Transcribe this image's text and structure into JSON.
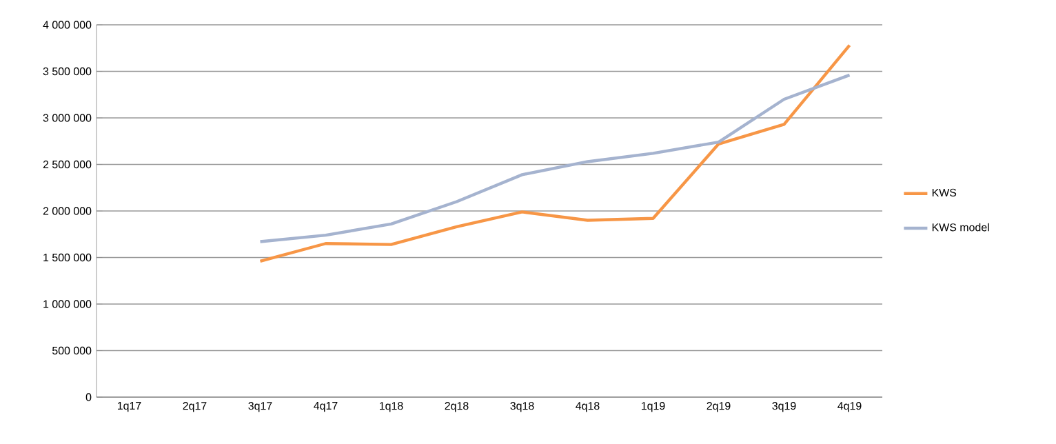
{
  "chart_data": {
    "type": "line",
    "categories": [
      "1q17",
      "2q17",
      "3q17",
      "4q17",
      "1q18",
      "2q18",
      "3q18",
      "4q18",
      "1q19",
      "2q19",
      "3q19",
      "4q19"
    ],
    "series": [
      {
        "name": "KWS",
        "color": "#f79646",
        "values": [
          null,
          null,
          1460000,
          1650000,
          1640000,
          1830000,
          1990000,
          1900000,
          1920000,
          2720000,
          2930000,
          3780000
        ]
      },
      {
        "name": "KWS model",
        "color": "#a5b3cf",
        "values": [
          null,
          null,
          1670000,
          1740000,
          1860000,
          2100000,
          2390000,
          2530000,
          2620000,
          2740000,
          3200000,
          3460000
        ]
      }
    ],
    "ylim": [
      0,
      4000000
    ],
    "yticks": [
      {
        "value": 0,
        "label": "0"
      },
      {
        "value": 500000,
        "label": "500 000"
      },
      {
        "value": 1000000,
        "label": "1 000 000"
      },
      {
        "value": 1500000,
        "label": "1 500 000"
      },
      {
        "value": 2000000,
        "label": "2 000 000"
      },
      {
        "value": 2500000,
        "label": "2 500 000"
      },
      {
        "value": 3000000,
        "label": "3 000 000"
      },
      {
        "value": 3500000,
        "label": "3 500 000"
      },
      {
        "value": 4000000,
        "label": "4 000 000"
      }
    ],
    "grid": "y",
    "legend": "right",
    "marker": "none",
    "line_style": "solid"
  }
}
